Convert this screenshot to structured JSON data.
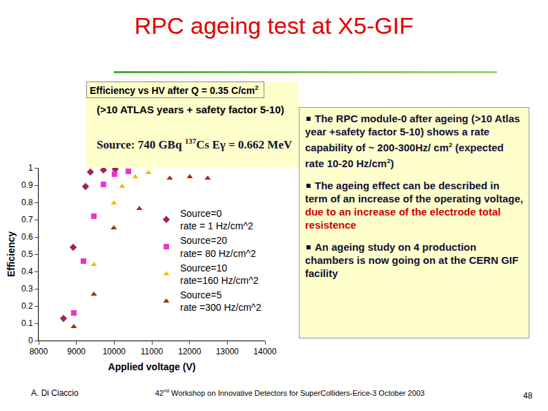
{
  "slide": {
    "title": "RPC ageing test at X5-GIF",
    "left_box": {
      "heading": [
        {
          "text": "Efficiency vs HV after Q = 0.35 C/cm"
        },
        {
          "text": "2",
          "style": "sup"
        }
      ],
      "subheading": "(>10 ATLAS years  + safety factor 5-10)",
      "source": [
        {
          "text": "Source: 740 GBq "
        },
        {
          "text": "137",
          "style": "sup"
        },
        {
          "text": "Cs  Eγ = 0.662 MeV"
        }
      ]
    },
    "right_box": {
      "bullets": [
        [
          {
            "text": "The RPC module-0 after ageing (>10 Atlas year +safety factor 5-10) shows a rate  capability of ~ 200-300Hz/ cm"
          },
          {
            "text": "2",
            "style": "sup"
          },
          {
            "text": "  (expected rate 10-20 Hz/cm"
          },
          {
            "text": "2",
            "style": "sup"
          },
          {
            "text": ")"
          }
        ],
        [
          {
            "text": "The  ageing effect can be described in term of an increase of the operating voltage, "
          },
          {
            "text": "due to an increase of the electrode total resistence",
            "style": "red"
          }
        ],
        [
          {
            "text": "An ageing study on 4 production chambers is now going on at the CERN GIF facility"
          }
        ]
      ]
    },
    "footer": {
      "author": "A. Di Ciaccio",
      "conference": [
        {
          "text": "42"
        },
        {
          "text": "nd",
          "style": "sup"
        },
        {
          "text": " Workshop on Innovative Detectors for SuperColliders-Erice-3 October 2003"
        }
      ],
      "page": "48"
    }
  },
  "chart_data": {
    "type": "scatter",
    "x_label": "Applied voltage (V)",
    "y_label": "Efficiency",
    "xlim": [
      8000,
      14000
    ],
    "xticks": [
      8000,
      9000,
      10000,
      11000,
      12000,
      13000,
      14000
    ],
    "ylim": [
      0,
      1
    ],
    "yticks": [
      0,
      0.1,
      0.2,
      0.3,
      0.4,
      0.5,
      0.6,
      0.7,
      0.8,
      0.9,
      1
    ],
    "grid": false,
    "legend": "upper right",
    "series": [
      {
        "name": "Source=0\nrate = 1 Hz/cm^2",
        "color": "#a0205a",
        "marker": "diamond",
        "x": [
          8658,
          8914,
          9243,
          9371,
          9718,
          10029
        ],
        "values": [
          0.128,
          0.54,
          0.892,
          0.976,
          0.988,
          0.992
        ]
      },
      {
        "name": "Source=20\nrate= 80 Hz/cm^2",
        "color": "#ee33cc",
        "marker": "square",
        "x": [
          8932,
          9188,
          9463,
          9718,
          10011,
          10377
        ],
        "values": [
          0.16,
          0.46,
          0.72,
          0.904,
          0.964,
          0.98
        ]
      },
      {
        "name": "Source=10\nrate=160 Hz/cm^2",
        "color": "#f0c000",
        "marker": "triangle-up",
        "x": [
          8932,
          9463,
          9993,
          10213,
          10560,
          10908
        ],
        "values": [
          0.08,
          0.44,
          0.796,
          0.892,
          0.948,
          0.972
        ]
      },
      {
        "name": "Source=5\nrate =300 Hz/cm^2",
        "color": "#a03010",
        "marker": "triangle-up",
        "x": [
          8932,
          9463,
          9993,
          10670,
          11475,
          12006,
          12481
        ],
        "values": [
          0.08,
          0.268,
          0.652,
          0.764,
          0.94,
          0.948,
          0.94
        ]
      }
    ]
  }
}
